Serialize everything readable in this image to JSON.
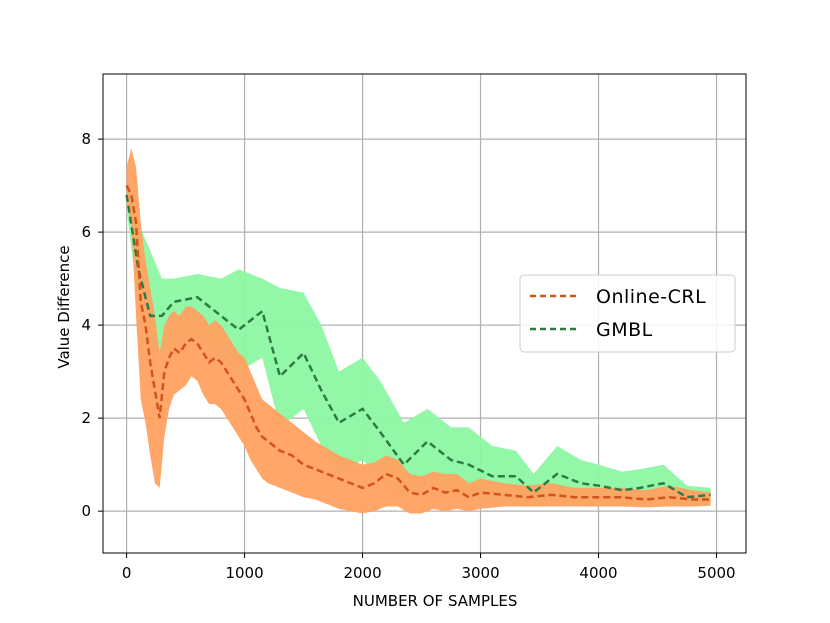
{
  "chart_data": {
    "type": "line",
    "title": "",
    "xlabel": "NUMBER OF SAMPLES",
    "ylabel": "Value Difference",
    "xlim": [
      -200,
      5250
    ],
    "ylim": [
      -0.9,
      9.4
    ],
    "grid": true,
    "legend_position": "right",
    "x_ticks": [
      0,
      1000,
      2000,
      3000,
      4000,
      5000
    ],
    "x_tick_labels": [
      "0",
      "1000",
      "2000",
      "3000",
      "4000",
      "5000"
    ],
    "y_ticks": [
      0,
      2,
      4,
      6,
      8
    ],
    "y_tick_labels": [
      "0",
      "2",
      "4",
      "6",
      "8"
    ],
    "series": [
      {
        "name": "Online-CRL",
        "color": "#d4521c",
        "band_color": "#ffa160",
        "style": "dashed",
        "points": [
          [
            0,
            7.0
          ],
          [
            40,
            6.8
          ],
          [
            80,
            6.2
          ],
          [
            120,
            4.5
          ],
          [
            160,
            4.0
          ],
          [
            200,
            3.2
          ],
          [
            240,
            2.6
          ],
          [
            280,
            2.0
          ],
          [
            320,
            3.0
          ],
          [
            360,
            3.3
          ],
          [
            400,
            3.5
          ],
          [
            450,
            3.4
          ],
          [
            500,
            3.6
          ],
          [
            550,
            3.7
          ],
          [
            600,
            3.6
          ],
          [
            650,
            3.4
          ],
          [
            700,
            3.2
          ],
          [
            750,
            3.3
          ],
          [
            800,
            3.2
          ],
          [
            850,
            3.0
          ],
          [
            900,
            2.8
          ],
          [
            950,
            2.6
          ],
          [
            1000,
            2.4
          ],
          [
            1050,
            2.1
          ],
          [
            1100,
            1.8
          ],
          [
            1150,
            1.6
          ],
          [
            1200,
            1.5
          ],
          [
            1300,
            1.3
          ],
          [
            1400,
            1.2
          ],
          [
            1500,
            1.0
          ],
          [
            1600,
            0.9
          ],
          [
            1700,
            0.8
          ],
          [
            1800,
            0.7
          ],
          [
            1900,
            0.6
          ],
          [
            2000,
            0.5
          ],
          [
            2100,
            0.6
          ],
          [
            2200,
            0.8
          ],
          [
            2300,
            0.7
          ],
          [
            2400,
            0.4
          ],
          [
            2500,
            0.35
          ],
          [
            2600,
            0.5
          ],
          [
            2700,
            0.4
          ],
          [
            2800,
            0.45
          ],
          [
            2900,
            0.3
          ],
          [
            3000,
            0.4
          ],
          [
            3200,
            0.35
          ],
          [
            3400,
            0.3
          ],
          [
            3600,
            0.35
          ],
          [
            3800,
            0.3
          ],
          [
            4000,
            0.3
          ],
          [
            4200,
            0.3
          ],
          [
            4400,
            0.25
          ],
          [
            4600,
            0.3
          ],
          [
            4800,
            0.25
          ],
          [
            4950,
            0.25
          ]
        ],
        "lower": [
          6.6,
          6.2,
          4.2,
          2.4,
          1.9,
          1.2,
          0.6,
          0.5,
          1.6,
          2.2,
          2.5,
          2.6,
          2.7,
          2.9,
          2.8,
          2.5,
          2.3,
          2.3,
          2.2,
          2.0,
          1.8,
          1.6,
          1.4,
          1.1,
          0.9,
          0.7,
          0.6,
          0.5,
          0.4,
          0.3,
          0.25,
          0.15,
          0.05,
          0.0,
          -0.05,
          0.0,
          0.1,
          0.1,
          -0.05,
          -0.05,
          0.05,
          0.0,
          0.05,
          0.0,
          0.05,
          0.1,
          0.1,
          0.1,
          0.1,
          0.1,
          0.1,
          0.08,
          0.1,
          0.1,
          0.12
        ],
        "upper": [
          7.4,
          7.8,
          7.4,
          6.2,
          5.4,
          4.8,
          4.2,
          3.4,
          4.0,
          4.2,
          4.3,
          4.2,
          4.4,
          4.4,
          4.3,
          4.2,
          4.0,
          4.1,
          4.0,
          3.8,
          3.6,
          3.4,
          3.3,
          3.0,
          2.7,
          2.4,
          2.3,
          2.1,
          1.9,
          1.7,
          1.5,
          1.35,
          1.2,
          1.1,
          1.0,
          1.05,
          1.2,
          1.1,
          0.8,
          0.75,
          0.85,
          0.8,
          0.8,
          0.6,
          0.7,
          0.6,
          0.55,
          0.6,
          0.5,
          0.5,
          0.5,
          0.45,
          0.55,
          0.45,
          0.4
        ]
      },
      {
        "name": "GMBL",
        "color": "#2e7a43",
        "band_color": "#8df7a3",
        "style": "dashed",
        "points": [
          [
            0,
            6.8
          ],
          [
            100,
            5.2
          ],
          [
            200,
            4.2
          ],
          [
            300,
            4.2
          ],
          [
            400,
            4.5
          ],
          [
            600,
            4.6
          ],
          [
            800,
            4.2
          ],
          [
            950,
            3.9
          ],
          [
            1150,
            4.3
          ],
          [
            1300,
            2.9
          ],
          [
            1500,
            3.4
          ],
          [
            1650,
            2.6
          ],
          [
            1800,
            1.9
          ],
          [
            2000,
            2.2
          ],
          [
            2150,
            1.7
          ],
          [
            2350,
            1.0
          ],
          [
            2550,
            1.5
          ],
          [
            2750,
            1.1
          ],
          [
            2900,
            1.0
          ],
          [
            3100,
            0.75
          ],
          [
            3300,
            0.75
          ],
          [
            3450,
            0.4
          ],
          [
            3650,
            0.8
          ],
          [
            3850,
            0.6
          ],
          [
            4000,
            0.55
          ],
          [
            4200,
            0.45
          ],
          [
            4350,
            0.5
          ],
          [
            4550,
            0.6
          ],
          [
            4750,
            0.3
          ],
          [
            4950,
            0.35
          ]
        ],
        "lower": [
          6.5,
          4.4,
          3.4,
          3.4,
          3.6,
          3.7,
          3.3,
          3.0,
          3.3,
          1.8,
          2.2,
          1.4,
          0.8,
          1.1,
          0.7,
          0.3,
          0.6,
          0.4,
          0.3,
          0.2,
          0.15,
          0.1,
          0.2,
          0.15,
          0.1,
          0.1,
          0.15,
          0.2,
          0.1,
          0.12
        ],
        "upper": [
          7.0,
          6.2,
          5.6,
          5.0,
          5.0,
          5.1,
          5.0,
          5.2,
          5.0,
          4.8,
          4.7,
          4.0,
          3.0,
          3.3,
          2.8,
          1.9,
          2.2,
          1.8,
          1.8,
          1.4,
          1.3,
          0.8,
          1.4,
          1.1,
          1.0,
          0.85,
          0.9,
          1.0,
          0.55,
          0.5
        ]
      }
    ]
  }
}
